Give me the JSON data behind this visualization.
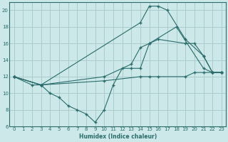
{
  "background_color": "#cce8e8",
  "grid_color": "#aacccc",
  "line_color": "#2a6b6b",
  "xlabel": "Humidex (Indice chaleur)",
  "xlim": [
    -0.5,
    23.5
  ],
  "ylim": [
    6,
    21
  ],
  "xticks": [
    0,
    1,
    2,
    3,
    4,
    5,
    6,
    7,
    8,
    9,
    10,
    11,
    12,
    13,
    14,
    15,
    16,
    17,
    18,
    19,
    20,
    21,
    22,
    23
  ],
  "yticks": [
    6,
    8,
    10,
    12,
    14,
    16,
    18,
    20
  ],
  "series": [
    {
      "x": [
        0,
        2,
        3,
        14,
        15,
        16,
        17,
        19,
        21,
        22,
        23
      ],
      "y": [
        12,
        11,
        11,
        18.5,
        20.5,
        20.5,
        20,
        16.5,
        14.5,
        12.5,
        12.5
      ]
    },
    {
      "x": [
        0,
        3,
        10,
        13,
        14,
        15,
        16,
        19,
        20,
        21,
        22,
        23
      ],
      "y": [
        12,
        11,
        12,
        13.5,
        15.5,
        16,
        16.5,
        16,
        16,
        14.5,
        12.5,
        12.5
      ]
    },
    {
      "x": [
        0,
        3,
        4,
        5,
        6,
        7,
        8,
        9,
        10,
        11,
        12,
        13,
        14,
        15,
        18,
        21,
        22,
        23
      ],
      "y": [
        12,
        11,
        10,
        9.5,
        8.5,
        8,
        7.5,
        6.5,
        8,
        11,
        13,
        13,
        13,
        16,
        18,
        13,
        12.5,
        12.5
      ]
    },
    {
      "x": [
        0,
        3,
        10,
        14,
        15,
        16,
        19,
        20,
        21,
        22,
        23
      ],
      "y": [
        12,
        11,
        11.5,
        12,
        12,
        12,
        12,
        12.5,
        12.5,
        12.5,
        12.5
      ]
    }
  ]
}
